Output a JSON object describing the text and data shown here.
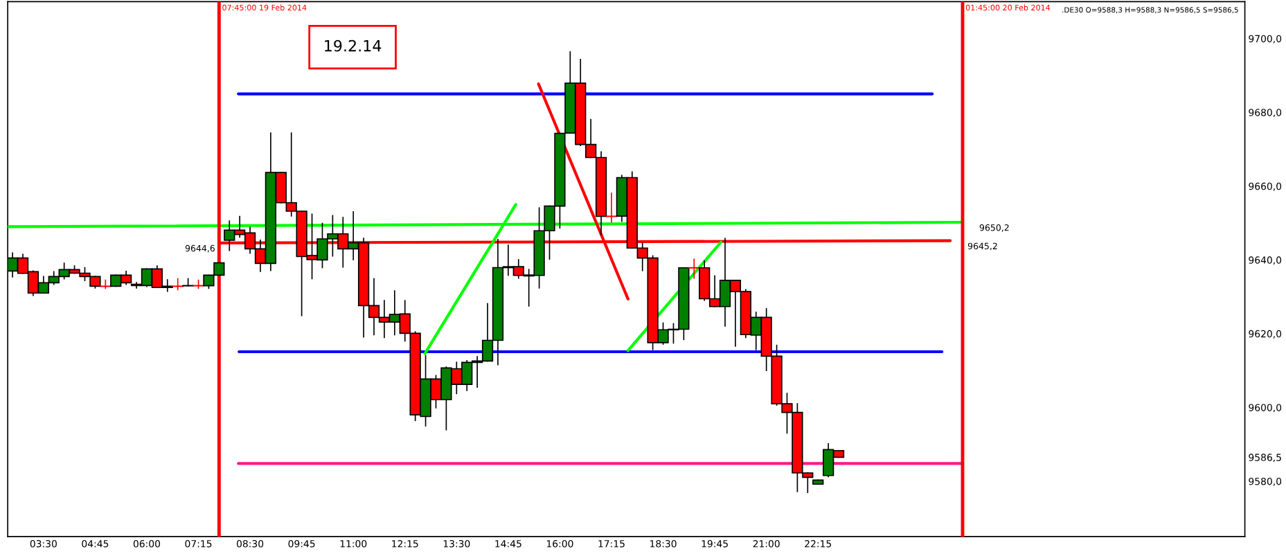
{
  "chart_data": {
    "type": "candlestick",
    "x": [
      "2014-02-19T02:45",
      "2014-02-19T03:00",
      "2014-02-19T03:15",
      "2014-02-19T03:30",
      "2014-02-19T03:45",
      "2014-02-19T04:00",
      "2014-02-19T04:15",
      "2014-02-19T04:30",
      "2014-02-19T04:45",
      "2014-02-19T05:00",
      "2014-02-19T05:15",
      "2014-02-19T05:30",
      "2014-02-19T05:45",
      "2014-02-19T06:00",
      "2014-02-19T06:15",
      "2014-02-19T06:30",
      "2014-02-19T06:45",
      "2014-02-19T07:00",
      "2014-02-19T07:15",
      "2014-02-19T07:30",
      "2014-02-19T07:45",
      "2014-02-19T08:00",
      "2014-02-19T08:15",
      "2014-02-19T08:30",
      "2014-02-19T08:45",
      "2014-02-19T09:00",
      "2014-02-19T09:15",
      "2014-02-19T09:30",
      "2014-02-19T09:45",
      "2014-02-19T10:00",
      "2014-02-19T10:15",
      "2014-02-19T10:30",
      "2014-02-19T10:45",
      "2014-02-19T11:00",
      "2014-02-19T11:15",
      "2014-02-19T11:30",
      "2014-02-19T11:45",
      "2014-02-19T12:00",
      "2014-02-19T12:15",
      "2014-02-19T12:30",
      "2014-02-19T12:45",
      "2014-02-19T13:00",
      "2014-02-19T13:15",
      "2014-02-19T13:30",
      "2014-02-19T13:45",
      "2014-02-19T14:00",
      "2014-02-19T14:15",
      "2014-02-19T14:30",
      "2014-02-19T14:45",
      "2014-02-19T15:00",
      "2014-02-19T15:15",
      "2014-02-19T15:30",
      "2014-02-19T15:45",
      "2014-02-19T16:00",
      "2014-02-19T16:15",
      "2014-02-19T16:30",
      "2014-02-19T16:45",
      "2014-02-19T17:00",
      "2014-02-19T17:15",
      "2014-02-19T17:30",
      "2014-02-19T17:45",
      "2014-02-19T18:00",
      "2014-02-19T18:15",
      "2014-02-19T18:30",
      "2014-02-19T18:45",
      "2014-02-19T19:00",
      "2014-02-19T19:15",
      "2014-02-19T19:30",
      "2014-02-19T19:45",
      "2014-02-19T20:00",
      "2014-02-19T20:15",
      "2014-02-19T20:30",
      "2014-02-19T20:45",
      "2014-02-19T21:00",
      "2014-02-19T21:15",
      "2014-02-19T21:30",
      "2014-02-19T21:45",
      "2014-02-19T22:00",
      "2014-02-19T22:15",
      "2014-02-19T22:30",
      "2014-02-19T22:45"
    ],
    "ohlc": [
      [
        9637.0,
        9641.9,
        9635.4,
        9640.5
      ],
      [
        9640.5,
        9641.5,
        9636.35,
        9636.35
      ],
      [
        9636.8,
        9637.0,
        9630.35,
        9631.0
      ],
      [
        9631.0,
        9635.5,
        9631.0,
        9633.8
      ],
      [
        9633.8,
        9636.8,
        9633.35,
        9635.5
      ],
      [
        9635.5,
        9639.1,
        9634.85,
        9637.35
      ],
      [
        9637.35,
        9638.35,
        9636.4,
        9636.4
      ],
      [
        9636.4,
        9637.9,
        9634.4,
        9635.5
      ],
      [
        9635.5,
        9635.5,
        9632.4,
        9632.85
      ],
      [
        9632.85,
        9634.5,
        9632.3,
        9632.85
      ],
      [
        9632.85,
        9635.85,
        9632.85,
        9635.85
      ],
      [
        9635.85,
        9636.9,
        9633.35,
        9633.8
      ],
      [
        9633.4,
        9633.85,
        9632.4,
        9633.05
      ],
      [
        9633.05,
        9637.55,
        9632.8,
        9637.55
      ],
      [
        9637.55,
        9638.35,
        9632.5,
        9632.5
      ],
      [
        9632.5,
        9634.6,
        9631.5,
        9632.85
      ],
      [
        9632.85,
        9634.9,
        9631.9,
        9632.85
      ],
      [
        9633.0,
        9634.9,
        9633.0,
        9633.0
      ],
      [
        9633.0,
        9634.5,
        9632.3,
        9633.0
      ],
      [
        9633.0,
        9635.85,
        9632.3,
        9635.85
      ],
      [
        9635.85,
        9639.2,
        9635.85,
        9639.2
      ],
      [
        9645.35,
        9650.55,
        9642.55,
        9648.05
      ],
      [
        9648.05,
        9651.8,
        9646.2,
        9646.9
      ],
      [
        9647.3,
        9648.8,
        9641.8,
        9643.0
      ],
      [
        9643.0,
        9645.35,
        9636.9,
        9639.05
      ],
      [
        9639.05,
        9674.4,
        9637.1,
        9663.7
      ],
      [
        9663.7,
        9663.7,
        9655.5,
        9655.5
      ],
      [
        9655.5,
        9674.4,
        9651.9,
        9653.2
      ],
      [
        9653.2,
        9653.2,
        9624.9,
        9640.9
      ],
      [
        9641.15,
        9652.4,
        9634.9,
        9640.1
      ],
      [
        9640.0,
        9649.9,
        9637.9,
        9645.7
      ],
      [
        9645.7,
        9652.0,
        9641.05,
        9647.05
      ],
      [
        9647.05,
        9651.5,
        9638.05,
        9643.0
      ],
      [
        9643.0,
        9653.05,
        9640.05,
        9644.65
      ],
      [
        9644.65,
        9645.85,
        9619.1,
        9627.6
      ],
      [
        9627.6,
        9634.9,
        9619.7,
        9624.4
      ],
      [
        9624.4,
        9628.95,
        9618.95,
        9623.15
      ],
      [
        9623.15,
        9631.6,
        9619.7,
        9625.2
      ],
      [
        9625.35,
        9628.95,
        9618.0,
        9620.1
      ],
      [
        9620.1,
        9620.5,
        9596.45,
        9598.0
      ],
      [
        9597.55,
        9614.0,
        9595.0,
        9607.7
      ],
      [
        9607.7,
        9608.65,
        9599.9,
        9602.1
      ],
      [
        9602.1,
        9610.95,
        9593.95,
        9610.7
      ],
      [
        9610.5,
        9612.25,
        9603.75,
        9606.25
      ],
      [
        9606.25,
        9612.7,
        9604.6,
        9612.2
      ],
      [
        9612.2,
        9613.75,
        9605.5,
        9612.6
      ],
      [
        9612.6,
        9628.15,
        9612.6,
        9618.2
      ],
      [
        9618.2,
        9645.55,
        9611.6,
        9637.9
      ],
      [
        9637.9,
        9644.0,
        9635.85,
        9638.15
      ],
      [
        9638.15,
        9640.05,
        9635.05,
        9635.8
      ],
      [
        9635.65,
        9637.4,
        9627.5,
        9635.9
      ],
      [
        9635.8,
        9654.1,
        9632.4,
        9647.9
      ],
      [
        9647.9,
        9654.6,
        9640.2,
        9654.6
      ],
      [
        9654.6,
        9674.3,
        9648.65,
        9674.3
      ],
      [
        9674.4,
        9696.4,
        9674.4,
        9687.9
      ],
      [
        9687.9,
        9694.35,
        9671.0,
        9671.3
      ],
      [
        9671.3,
        9678.05,
        9667.75,
        9667.75
      ],
      [
        9667.75,
        9669.3,
        9646.8,
        9651.8
      ],
      [
        9651.8,
        9658.05,
        9650.25,
        9651.8
      ],
      [
        9651.85,
        9662.9,
        9650.45,
        9662.3
      ],
      [
        9662.3,
        9663.85,
        9643.2,
        9643.2
      ],
      [
        9643.2,
        9644.6,
        9637.1,
        9640.5
      ],
      [
        9640.5,
        9641.1,
        9615.7,
        9617.55
      ],
      [
        9617.55,
        9622.9,
        9617.15,
        9621.05
      ],
      [
        9621.05,
        9622.7,
        9617.45,
        9621.2
      ],
      [
        9621.2,
        9637.85,
        9618.4,
        9637.85
      ],
      [
        9637.85,
        9640.2,
        9635.05,
        9637.85
      ],
      [
        9637.85,
        9639.7,
        9629.05,
        9629.45
      ],
      [
        9629.45,
        9635.7,
        9627.35,
        9627.35
      ],
      [
        9627.35,
        9645.8,
        9622.05,
        9634.45
      ],
      [
        9634.45,
        9634.45,
        9616.6,
        9631.4
      ],
      [
        9631.4,
        9631.95,
        9618.95,
        9619.75
      ],
      [
        9619.6,
        9625.8,
        9615.7,
        9624.4
      ],
      [
        9624.4,
        9626.75,
        9610.0,
        9613.9
      ],
      [
        9613.9,
        9616.85,
        9600.65,
        9601.0
      ],
      [
        9601.0,
        9603.8,
        9593.05,
        9598.65
      ],
      [
        9598.65,
        9601.0,
        9577.2,
        9582.25
      ],
      [
        9582.25,
        9582.25,
        9576.95,
        9581.05
      ],
      [
        9579.2,
        9580.3,
        9579.2,
        9580.3
      ],
      [
        9581.55,
        9590.15,
        9581.25,
        9588.55
      ],
      [
        9588.3,
        9588.3,
        9586.5,
        9586.5
      ]
    ],
    "colors": [
      "#008000",
      "#ff0000",
      "#ff0000",
      "#008000",
      "#008000",
      "#008000",
      "#ff0000",
      "#ff0000",
      "#ff0000",
      "#ff0000",
      "#008000",
      "#ff0000",
      "#ff0000",
      "#008000",
      "#ff0000",
      "#008000",
      "#ff0000",
      "#000000",
      "#ff0000",
      "#008000",
      "#008000",
      "#008000",
      "#ff0000",
      "#ff0000",
      "#ff0000",
      "#008000",
      "#ff0000",
      "#ff0000",
      "#ff0000",
      "#ff0000",
      "#008000",
      "#008000",
      "#ff0000",
      "#008000",
      "#ff0000",
      "#ff0000",
      "#ff0000",
      "#008000",
      "#ff0000",
      "#ff0000",
      "#008000",
      "#ff0000",
      "#008000",
      "#ff0000",
      "#008000",
      "#008000",
      "#008000",
      "#008000",
      "#008000",
      "#ff0000",
      "#008000",
      "#008000",
      "#008000",
      "#008000",
      "#008000",
      "#ff0000",
      "#ff0000",
      "#ff0000",
      "#ff0000",
      "#008000",
      "#ff0000",
      "#ff0000",
      "#ff0000",
      "#008000",
      "#008000",
      "#008000",
      "#ff0000",
      "#ff0000",
      "#ff0000",
      "#008000",
      "#ff0000",
      "#ff0000",
      "#008000",
      "#ff0000",
      "#ff0000",
      "#ff0000",
      "#ff0000",
      "#ff0000",
      "#008000",
      "#008000",
      "#ff0000"
    ],
    "series": [
      {
        "type": "line",
        "color": "#0000ff",
        "x": [
          "2014-02-19T08:13",
          "2014-02-20T01:01"
        ],
        "values": [
          9685.0,
          9685.0
        ]
      },
      {
        "type": "line",
        "color": "#0000ff",
        "x": [
          "2014-02-19T08:14",
          "2014-02-20T01:15"
        ],
        "values": [
          9615.1,
          9615.1
        ]
      },
      {
        "type": "line",
        "color": "#00ff00",
        "x": [
          "2014-02-19T02:39",
          "2014-02-20T01:44"
        ],
        "values": [
          9649.0,
          9650.2
        ]
      },
      {
        "type": "line",
        "color": "#ff0000",
        "x": [
          "2014-02-19T07:45",
          "2014-02-20T01:27"
        ],
        "values": [
          9644.6,
          9645.2
        ]
      },
      {
        "type": "line",
        "color": "#ff1a8c",
        "x": [
          "2014-02-19T08:13",
          "2014-02-20T01:44"
        ],
        "values": [
          9584.8,
          9584.8
        ]
      },
      {
        "type": "line",
        "color": "#00ff00",
        "x": [
          "2014-02-19T12:44",
          "2014-02-19T14:56"
        ],
        "values": [
          9614.6,
          9655.0
        ]
      },
      {
        "type": "line",
        "color": "#ff0000",
        "x": [
          "2014-02-19T15:29",
          "2014-02-19T17:39"
        ],
        "values": [
          9687.7,
          9629.4
        ]
      },
      {
        "type": "line",
        "color": "#00ff00",
        "x": [
          "2014-02-19T17:39",
          "2014-02-19T19:54"
        ],
        "values": [
          9615.4,
          9644.8
        ]
      }
    ],
    "ref_lines": [
      {
        "axis": "x",
        "value": "2014-02-19T07:45",
        "label": "07:45:00 19 Feb 2014",
        "color": "#ff0000"
      },
      {
        "axis": "x",
        "value": "2014-02-20T01:45",
        "label": "01:45:00 20 Feb 2014",
        "color": "#ff0000"
      }
    ],
    "annotations": [
      "19.2.14",
      ".DE30 O=9588,3 H=9588,3 N=9586,5 S=9586,5",
      {
        "text": "9644,6",
        "x": "2014-02-19T07:45",
        "y": 9644.6
      },
      {
        "text": "9645,2",
        "x": "2014-02-20T01:27",
        "y": 9645.2
      },
      {
        "text": "9650,2",
        "x": "2014-02-20T01:44",
        "y": 9650.2
      }
    ],
    "xlim": [
      "2014-02-19T02:38",
      "2014-02-20T08:35"
    ],
    "ylim": [
      9565,
      9710
    ],
    "xticks": [
      {
        "value": "2014-02-19T03:30",
        "label": "03:30"
      },
      {
        "value": "2014-02-19T04:45",
        "label": "04:45"
      },
      {
        "value": "2014-02-19T06:00",
        "label": "06:00"
      },
      {
        "value": "2014-02-19T07:15",
        "label": "07:15"
      },
      {
        "value": "2014-02-19T08:30",
        "label": "08:30"
      },
      {
        "value": "2014-02-19T09:45",
        "label": "09:45"
      },
      {
        "value": "2014-02-19T11:00",
        "label": "11:00"
      },
      {
        "value": "2014-02-19T12:15",
        "label": "12:15"
      },
      {
        "value": "2014-02-19T13:30",
        "label": "13:30"
      },
      {
        "value": "2014-02-19T14:45",
        "label": "14:45"
      },
      {
        "value": "2014-02-19T16:00",
        "label": "16:00"
      },
      {
        "value": "2014-02-19T17:15",
        "label": "17:15"
      },
      {
        "value": "2014-02-19T18:30",
        "label": "18:30"
      },
      {
        "value": "2014-02-19T19:45",
        "label": "19:45"
      },
      {
        "value": "2014-02-19T21:00",
        "label": "21:00"
      },
      {
        "value": "2014-02-19T22:15",
        "label": "22:15"
      }
    ],
    "yticks": [
      {
        "value": 9580,
        "label": "9580,0"
      },
      {
        "value": 9586.5,
        "label": "9586,5"
      },
      {
        "value": 9600,
        "label": "9600,0"
      },
      {
        "value": 9620,
        "label": "9620,0"
      },
      {
        "value": 9640,
        "label": "9640,0"
      },
      {
        "value": 9660,
        "label": "9660,0"
      },
      {
        "value": 9680,
        "label": "9680,0"
      },
      {
        "value": 9700,
        "label": "9700,0"
      }
    ]
  }
}
